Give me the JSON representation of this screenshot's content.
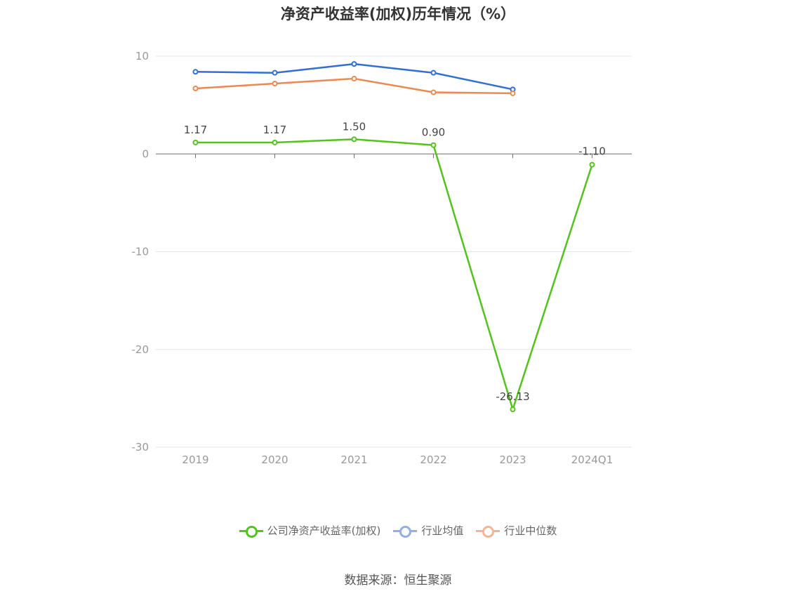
{
  "chart_data": {
    "type": "line",
    "title": "净资产收益率(加权)历年情况（%）",
    "categories": [
      "2019",
      "2020",
      "2021",
      "2022",
      "2023",
      "2024Q1"
    ],
    "ylim": [
      -30,
      10
    ],
    "yticks": [
      10,
      0,
      -10,
      -20,
      -30
    ],
    "grid": true,
    "legend_position": "bottom",
    "series": [
      {
        "name": "公司净资产收益率(加权)",
        "color": "#52c41a",
        "values": [
          1.17,
          1.17,
          1.5,
          0.9,
          -26.13,
          -1.1
        ],
        "labels": [
          "1.17",
          "1.17",
          "1.50",
          "0.90",
          "-26.13",
          "-1.10"
        ]
      },
      {
        "name": "行业均值",
        "color": "#2f6fd6",
        "values": [
          8.4,
          8.3,
          9.2,
          8.3,
          6.6,
          null
        ]
      },
      {
        "name": "行业中位数",
        "color": "#f0884d",
        "values": [
          6.7,
          7.2,
          7.7,
          6.3,
          6.2,
          null
        ]
      }
    ]
  },
  "legend": {
    "items": [
      {
        "label": "公司净资产收益率(加权)",
        "color": "#52c41a"
      },
      {
        "label": "行业均值",
        "color": "#8fb0ea"
      },
      {
        "label": "行业中位数",
        "color": "#f7b393"
      }
    ]
  },
  "source": "数据来源：恒生聚源"
}
